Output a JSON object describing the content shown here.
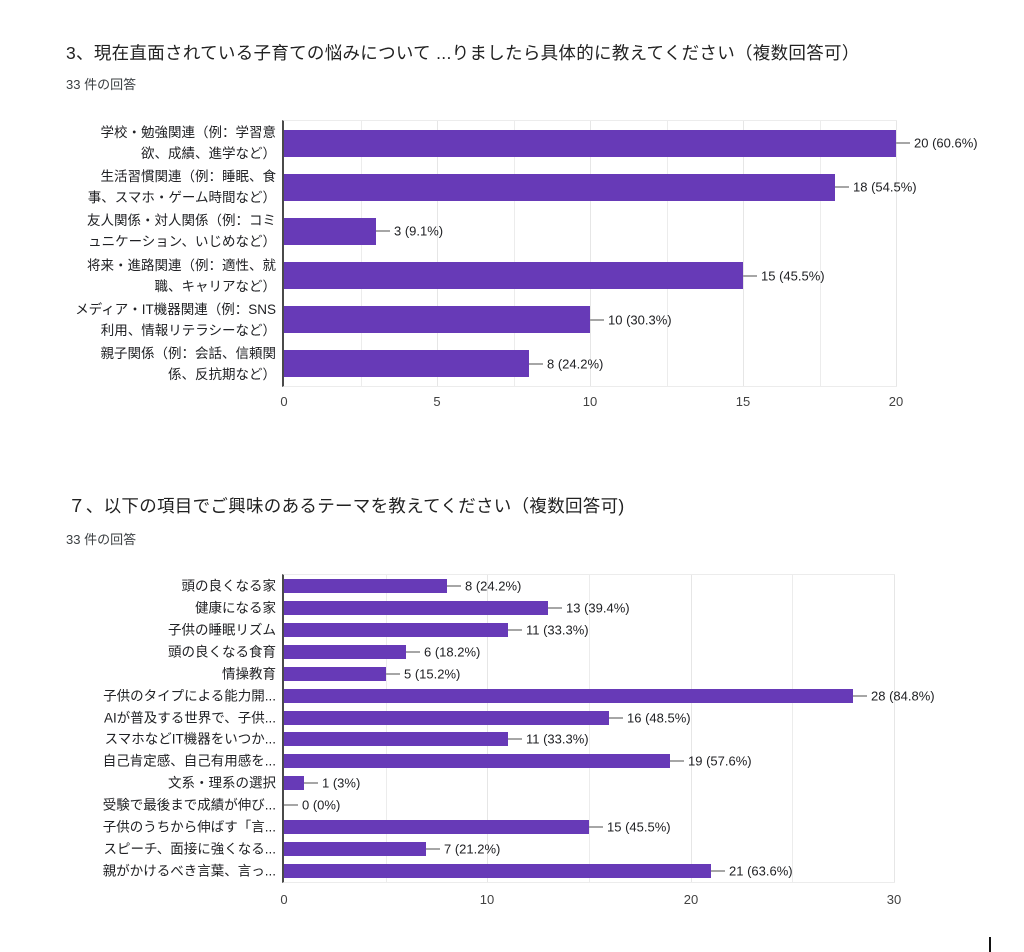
{
  "colors": {
    "bar": "#673ab7",
    "grid": "#ececec",
    "axis": "#4a4a4a",
    "text": "#202124"
  },
  "chart_data": [
    {
      "type": "bar",
      "orientation": "horizontal",
      "title": "3、現在直面されている子育ての悩みについて ...りましたら具体的に教えてください（複数回答可）",
      "responses_label": "33 件の回答",
      "categories": [
        "学校・勉強関連（例：学習意\n欲、成績、進学など）",
        "生活習慣関連（例：睡眠、食\n事、スマホ・ゲーム時間など）",
        "友人関係・対人関係（例：コミ\nュニケーション、いじめなど）",
        "将来・進路関連（例：適性、就\n職、キャリアなど）",
        "メディア・IT機器関連（例：SNS\n利用、情報リテラシーなど）",
        "親子関係（例：会話、信頼関\n係、反抗期など）"
      ],
      "values": [
        20,
        18,
        3,
        15,
        10,
        8
      ],
      "value_labels": [
        "20 (60.6%)",
        "18 (54.5%)",
        "3 (9.1%)",
        "15 (45.5%)",
        "10 (30.3%)",
        "8 (24.2%)"
      ],
      "xlabel": "",
      "ylabel": "",
      "xlim": [
        0,
        20
      ],
      "x_ticks": [
        0,
        5,
        10,
        15,
        20
      ],
      "minor_grid_step": 2.5,
      "grid": true,
      "legend": "none",
      "bar_color": "#673ab7"
    },
    {
      "type": "bar",
      "orientation": "horizontal",
      "title": "７、以下の項目でご興味のあるテーマを教えてください（複数回答可)",
      "responses_label": "33 件の回答",
      "categories": [
        "頭の良くなる家",
        "健康になる家",
        "子供の睡眠リズム",
        "頭の良くなる食育",
        "情操教育",
        "子供のタイプによる能力開...",
        "AIが普及する世界で、子供...",
        "スマホなどIT機器をいつか...",
        "自己肯定感、自己有用感を...",
        "文系・理系の選択",
        "受験で最後まで成績が伸び...",
        "子供のうちから伸ばす「言...",
        "スピーチ、面接に強くなる...",
        "親がかけるべき言葉、言っ..."
      ],
      "values": [
        8,
        13,
        11,
        6,
        5,
        28,
        16,
        11,
        19,
        1,
        0,
        15,
        7,
        21
      ],
      "value_labels": [
        "8 (24.2%)",
        "13 (39.4%)",
        "11 (33.3%)",
        "6 (18.2%)",
        "5 (15.2%)",
        "28 (84.8%)",
        "16 (48.5%)",
        "11 (33.3%)",
        "19 (57.6%)",
        "1 (3%)",
        "0 (0%)",
        "15 (45.5%)",
        "7 (21.2%)",
        "21 (63.6%)"
      ],
      "xlabel": "",
      "ylabel": "",
      "xlim": [
        0,
        30
      ],
      "x_ticks": [
        0,
        10,
        20,
        30
      ],
      "minor_grid_step": 5,
      "grid": true,
      "legend": "none",
      "bar_color": "#673ab7"
    }
  ]
}
